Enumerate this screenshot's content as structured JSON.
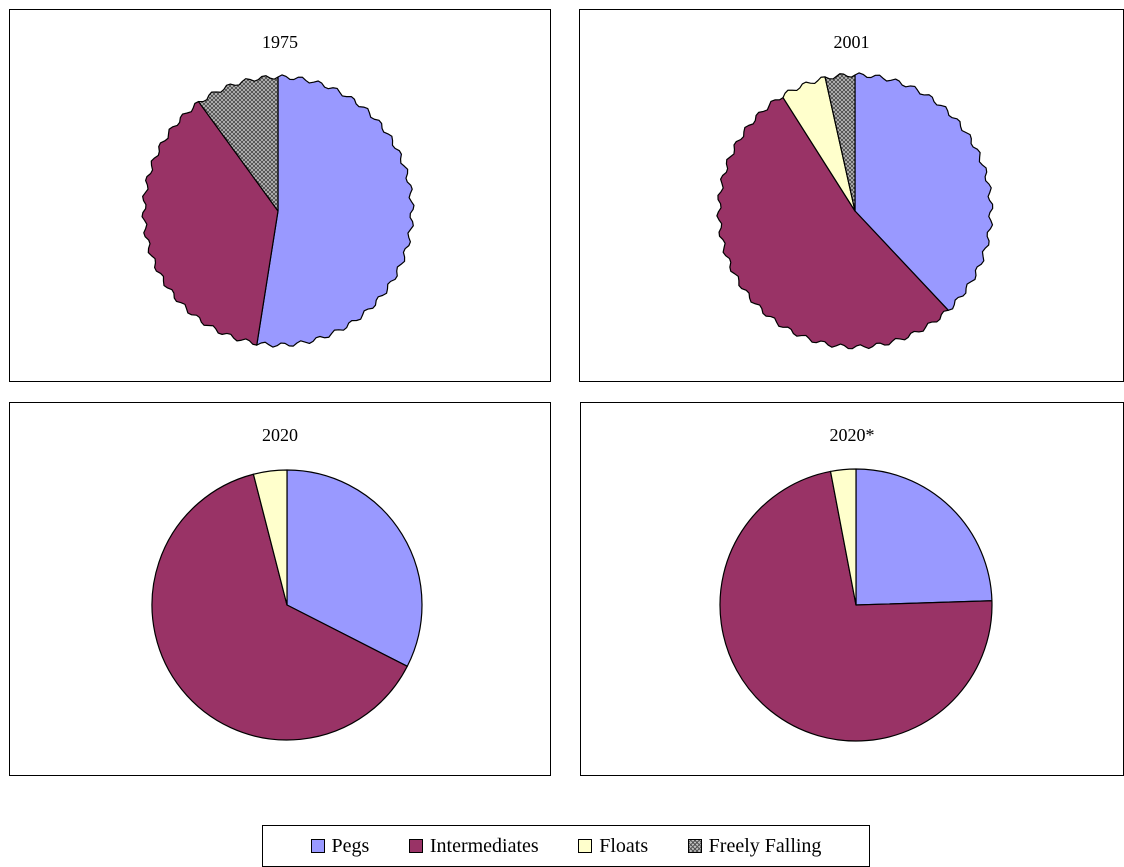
{
  "chart_data": [
    {
      "type": "pie",
      "title": "1975",
      "labels": [
        "Pegs",
        "Intermediates",
        "Floats",
        "Freely Falling"
      ],
      "values": [
        52.5,
        37.5,
        0,
        10
      ]
    },
    {
      "type": "pie",
      "title": "2001",
      "labels": [
        "Pegs",
        "Intermediates",
        "Floats",
        "Freely Falling"
      ],
      "values": [
        38,
        53,
        5.5,
        3.5
      ]
    },
    {
      "type": "pie",
      "title": "2020",
      "labels": [
        "Pegs",
        "Intermediates",
        "Floats",
        "Freely Falling"
      ],
      "values": [
        32.5,
        63.5,
        4,
        0
      ]
    },
    {
      "type": "pie",
      "title": "2020*",
      "labels": [
        "Pegs",
        "Intermediates",
        "Floats",
        "Freely Falling"
      ],
      "values": [
        24.5,
        72.5,
        3,
        0
      ]
    }
  ],
  "legend": {
    "position": "bottom",
    "items": [
      {
        "label": "Pegs",
        "color": "#9999ff",
        "pattern": "solid"
      },
      {
        "label": "Intermediates",
        "color": "#993366",
        "pattern": "solid"
      },
      {
        "label": "Floats",
        "color": "#ffffcc",
        "pattern": "solid"
      },
      {
        "label": "Freely Falling",
        "color": "#c0c0c0",
        "pattern": "crosshatch"
      }
    ]
  }
}
